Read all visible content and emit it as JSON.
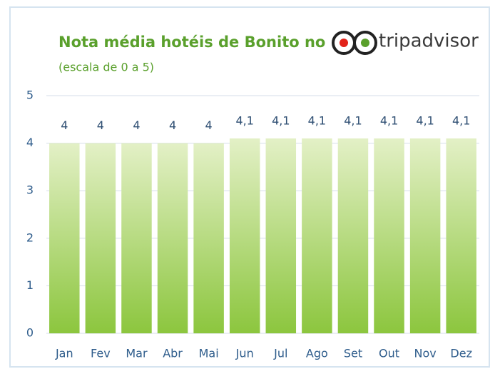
{
  "chart_data": {
    "type": "bar",
    "title": "Nota média hotéis de Bonito no",
    "logo": "tripadvisor",
    "subtitle": "(escala de 0 a 5)",
    "categories": [
      "Jan",
      "Fev",
      "Mar",
      "Abr",
      "Mai",
      "Jun",
      "Jul",
      "Ago",
      "Set",
      "Out",
      "Nov",
      "Dez"
    ],
    "values": [
      4,
      4,
      4,
      4,
      4,
      4.1,
      4.1,
      4.1,
      4.1,
      4.1,
      4.1,
      4.1
    ],
    "value_labels": [
      "4",
      "4",
      "4",
      "4",
      "4",
      "4,1",
      "4,1",
      "4,1",
      "4,1",
      "4,1",
      "4,1",
      "4,1"
    ],
    "color": "#8cc63e",
    "ylim": [
      0,
      5
    ],
    "yticks": [
      0,
      1,
      2,
      3,
      4,
      5
    ],
    "grid": true
  }
}
